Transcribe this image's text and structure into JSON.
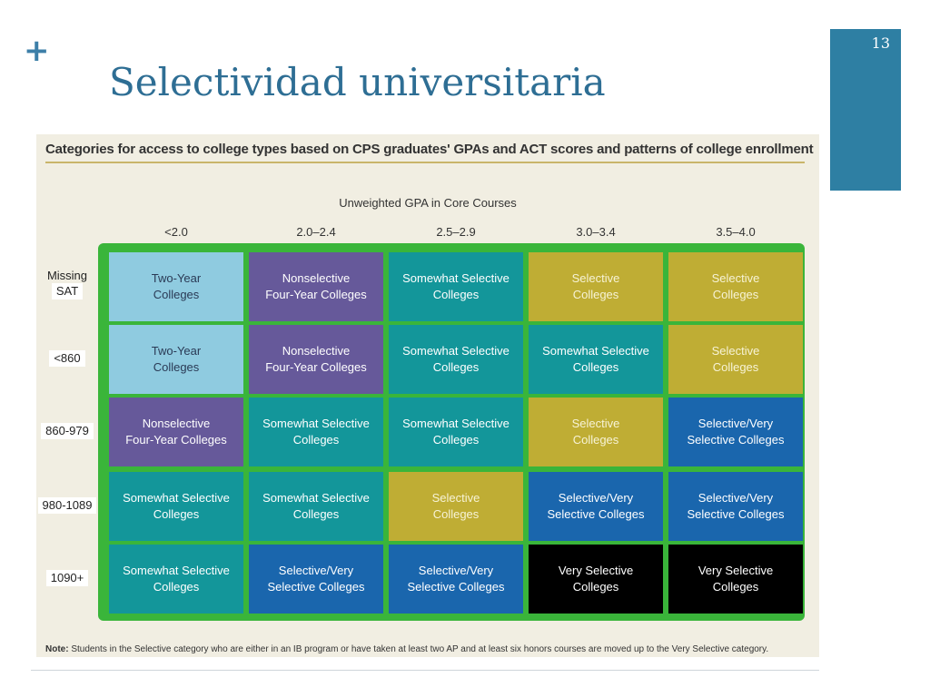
{
  "slide": {
    "plus_symbol": "+",
    "title": "Selectividad universitaria",
    "slide_number": "13"
  },
  "figure": {
    "heading": "Categories for access to college types based on CPS graduates' GPAs and ACT scores and patterns of college enrollment",
    "gpa_axis_label": "Unweighted GPA in Core Courses",
    "columns": [
      "<2.0",
      "2.0–2.4",
      "2.5–2.9",
      "3.0–3.4",
      "3.5–4.0"
    ],
    "rows": [
      {
        "label_top": "Missing",
        "label_bottom": "SAT"
      },
      {
        "label_top": "",
        "label_bottom": "<860"
      },
      {
        "label_top": "",
        "label_bottom": "860-979"
      },
      {
        "label_top": "",
        "label_bottom": "980-1089"
      },
      {
        "label_top": "",
        "label_bottom": "1090+"
      }
    ],
    "category_colors": {
      "two_year": "#8fcbe0",
      "nonselective": "#66599a",
      "somewhat_selective": "#13969a",
      "selective": "#bfad34",
      "selective_very": "#1a66ad",
      "very_selective": "#000000",
      "frame": "#3ab53a"
    },
    "cells": [
      [
        {
          "text": "Two-Year\nColleges",
          "category": "two_year"
        },
        {
          "text": "Nonselective\nFour-Year Colleges",
          "category": "nonselective"
        },
        {
          "text": "Somewhat Selective\nColleges",
          "category": "somewhat_selective"
        },
        {
          "text": "Selective\nColleges",
          "category": "selective"
        },
        {
          "text": "Selective\nColleges",
          "category": "selective"
        }
      ],
      [
        {
          "text": "Two-Year\nColleges",
          "category": "two_year"
        },
        {
          "text": "Nonselective\nFour-Year Colleges",
          "category": "nonselective"
        },
        {
          "text": "Somewhat Selective\nColleges",
          "category": "somewhat_selective"
        },
        {
          "text": "Somewhat Selective\nColleges",
          "category": "somewhat_selective"
        },
        {
          "text": "Selective\nColleges",
          "category": "selective"
        }
      ],
      [
        {
          "text": "Nonselective\nFour-Year Colleges",
          "category": "nonselective"
        },
        {
          "text": "Somewhat Selective\nColleges",
          "category": "somewhat_selective"
        },
        {
          "text": "Somewhat Selective\nColleges",
          "category": "somewhat_selective"
        },
        {
          "text": "Selective\nColleges",
          "category": "selective"
        },
        {
          "text": "Selective/Very\nSelective Colleges",
          "category": "selective_very"
        }
      ],
      [
        {
          "text": "Somewhat Selective\nColleges",
          "category": "somewhat_selective"
        },
        {
          "text": "Somewhat Selective\nColleges",
          "category": "somewhat_selective"
        },
        {
          "text": "Selective\nColleges",
          "category": "selective"
        },
        {
          "text": "Selective/Very\nSelective Colleges",
          "category": "selective_very"
        },
        {
          "text": "Selective/Very\nSelective Colleges",
          "category": "selective_very"
        }
      ],
      [
        {
          "text": "Somewhat Selective\nColleges",
          "category": "somewhat_selective"
        },
        {
          "text": "Selective/Very\nSelective Colleges",
          "category": "selective_very"
        },
        {
          "text": "Selective/Very\nSelective Colleges",
          "category": "selective_very"
        },
        {
          "text": "Very Selective\nColleges",
          "category": "very_selective"
        },
        {
          "text": "Very Selective\nColleges",
          "category": "very_selective"
        }
      ]
    ],
    "note_label": "Note:",
    "note_text": " Students in the Selective category who are either in an IB program or have taken at least two AP and at least six honors courses are moved up to the Very Selective category."
  }
}
